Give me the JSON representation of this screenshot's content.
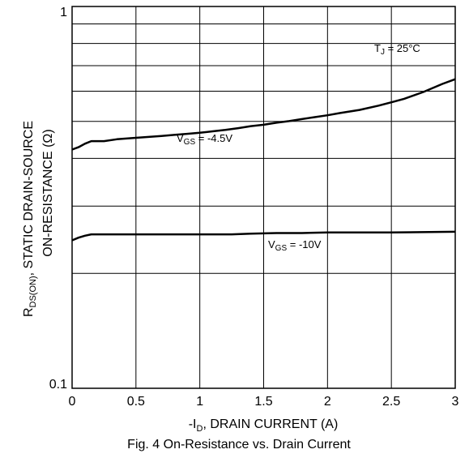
{
  "chart_data": {
    "type": "line",
    "title": "",
    "caption": "Fig. 4 On-Resistance vs. Drain Current",
    "xlabel": {
      "prefix": "-I",
      "sub": "D",
      "suffix": ", DRAIN CURRENT (A)"
    },
    "ylabel": {
      "line1_prefix": "R",
      "line1_sub": "DS(ON)",
      "line1_suffix": ", STATIC DRAIN-SOURCE",
      "line2": "ON-RESISTANCE (Ω)"
    },
    "xlim": [
      0,
      3
    ],
    "ylim": [
      0.1,
      1
    ],
    "yscale": "log",
    "grid": true,
    "xticks": [
      0,
      0.5,
      1,
      1.5,
      2,
      2.5,
      3
    ],
    "xtick_labels": [
      "0",
      "0.5",
      "1",
      "1.5",
      "2",
      "2.5",
      "3"
    ],
    "yticks": [
      0.1,
      1
    ],
    "ytick_labels": [
      "0.1",
      "1"
    ],
    "annotation": {
      "prefix": "T",
      "sub": "J",
      "suffix": " = 25°C"
    },
    "series": [
      {
        "name": "VGS = -4.5V",
        "label": {
          "prefix": "V",
          "sub": "GS",
          "suffix": " = -4.5V"
        },
        "color": "#000000",
        "x": [
          0,
          0.05,
          0.1,
          0.15,
          0.25,
          0.35,
          0.5,
          0.7,
          0.8,
          0.9,
          1.0,
          1.1,
          1.2,
          1.3,
          1.4,
          1.5,
          1.6,
          1.7,
          1.8,
          1.9,
          2.0,
          2.1,
          2.25,
          2.4,
          2.5,
          2.6,
          2.75,
          2.9,
          3.0
        ],
        "y": [
          0.422,
          0.428,
          0.437,
          0.444,
          0.444,
          0.449,
          0.453,
          0.458,
          0.461,
          0.464,
          0.467,
          0.471,
          0.475,
          0.48,
          0.486,
          0.49,
          0.496,
          0.501,
          0.507,
          0.513,
          0.519,
          0.526,
          0.536,
          0.55,
          0.561,
          0.573,
          0.597,
          0.627,
          0.645
        ]
      },
      {
        "name": "VGS = -10V",
        "label": {
          "prefix": "V",
          "sub": "GS",
          "suffix": " = -10V"
        },
        "color": "#000000",
        "x": [
          0,
          0.05,
          0.1,
          0.15,
          0.3,
          0.5,
          1.0,
          1.25,
          1.4,
          1.6,
          1.8,
          2.0,
          2.5,
          3.0
        ],
        "y": [
          0.244,
          0.248,
          0.251,
          0.253,
          0.253,
          0.253,
          0.253,
          0.253,
          0.254,
          0.255,
          0.255,
          0.256,
          0.256,
          0.257
        ]
      }
    ]
  }
}
